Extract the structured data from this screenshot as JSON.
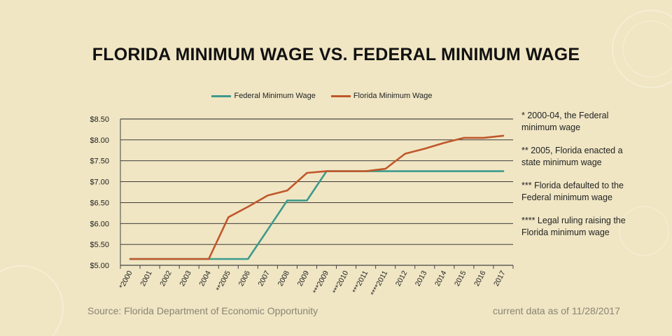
{
  "title": "FLORIDA MINIMUM WAGE VS. FEDERAL MINIMUM WAGE",
  "colors": {
    "background": "#f0e6c4",
    "federal": "#3d9a8c",
    "florida": "#c0572b"
  },
  "notes": [
    "* 2000-04, the Federal minimum wage",
    "** 2005, Florida enacted a state minimum wage",
    "*** Florida defaulted to the Federal minimum wage",
    "**** Legal ruling raising the Florida minimum wage"
  ],
  "footer": {
    "source": "Source: Florida Department of Economic Opportunity",
    "date": "current data as of 11/28/2017"
  },
  "chart_data": {
    "type": "line",
    "title": "FLORIDA MINIMUM WAGE VS. FEDERAL MINIMUM WAGE",
    "xlabel": "",
    "ylabel": "",
    "legend_position": "top-center",
    "grid": "horizontal",
    "categories": [
      "*2000",
      "2001",
      "2002",
      "2003",
      "2004",
      "**2005",
      "2006",
      "2007",
      "2008",
      "2009",
      "***2009",
      "***2010",
      "***2011",
      "****2011",
      "2012",
      "2013",
      "2014",
      "2015",
      "2016",
      "2017"
    ],
    "yticks": [
      "$5.00",
      "$5.50",
      "$6.00",
      "$6.50",
      "$7.00",
      "$7.50",
      "$8.00",
      "$8.50"
    ],
    "ylim": [
      5.0,
      8.5
    ],
    "series": [
      {
        "name": "Federal Minimum Wage",
        "values": [
          5.15,
          5.15,
          5.15,
          5.15,
          5.15,
          5.15,
          5.15,
          5.85,
          6.55,
          6.55,
          7.25,
          7.25,
          7.25,
          7.25,
          7.25,
          7.25,
          7.25,
          7.25,
          7.25,
          7.25
        ]
      },
      {
        "name": "Florida Minimum Wage",
        "values": [
          5.15,
          5.15,
          5.15,
          5.15,
          5.15,
          6.15,
          6.4,
          6.67,
          6.79,
          7.21,
          7.25,
          7.25,
          7.25,
          7.31,
          7.67,
          7.79,
          7.93,
          8.05,
          8.05,
          8.1
        ]
      }
    ]
  }
}
